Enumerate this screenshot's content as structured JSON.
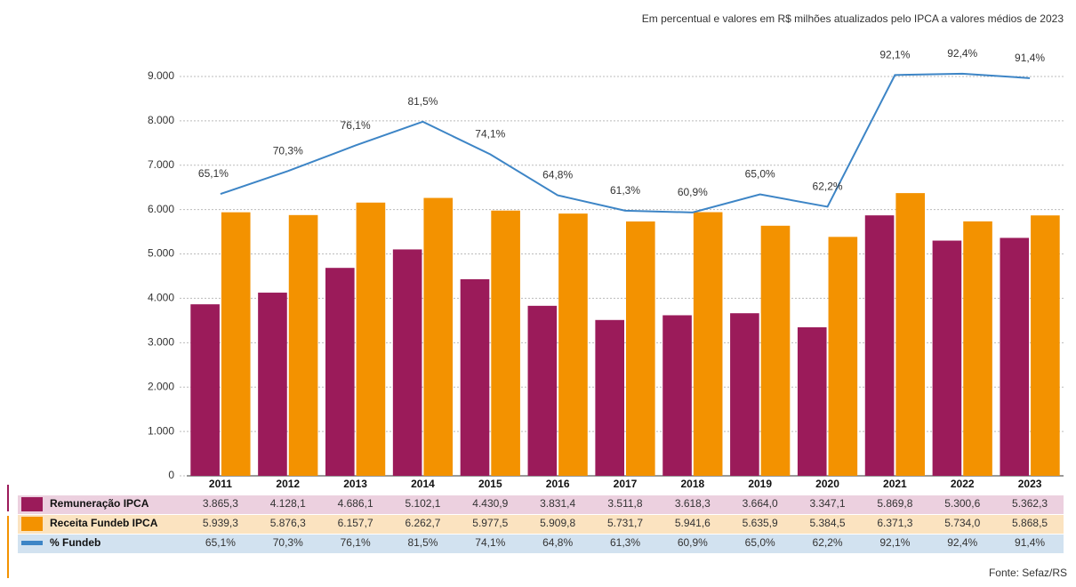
{
  "chart_data": {
    "type": "bar_line",
    "subtitle": "Em percentual e valores em R$ milhões atualizados pelo IPCA a valores médios de 2023",
    "source": "Fonte: Sefaz/RS",
    "categories": [
      "2011",
      "2012",
      "2013",
      "2014",
      "2015",
      "2016",
      "2017",
      "2018",
      "2019",
      "2020",
      "2021",
      "2022",
      "2023"
    ],
    "series": [
      {
        "name": "Remuneração IPCA",
        "color": "#9b1b5a",
        "row_color": "#ecd0df",
        "values": [
          3865.3,
          4128.1,
          4686.1,
          5102.1,
          4430.9,
          3831.4,
          3511.8,
          3618.3,
          3664.0,
          3347.1,
          5869.8,
          5300.6,
          5362.3
        ],
        "value_labels": [
          "3.865,3",
          "4.128,1",
          "4.686,1",
          "5.102,1",
          "4.430,9",
          "3.831,4",
          "3.511,8",
          "3.618,3",
          "3.664,0",
          "3.347,1",
          "5.869,8",
          "5.300,6",
          "5.362,3"
        ]
      },
      {
        "name": "Receita Fundeb IPCA",
        "color": "#f39200",
        "row_color": "#fbe3c0",
        "values": [
          5939.3,
          5876.3,
          6157.7,
          6262.7,
          5977.5,
          5909.8,
          5731.7,
          5941.6,
          5635.9,
          5384.5,
          6371.3,
          5734.0,
          5868.5
        ],
        "value_labels": [
          "5.939,3",
          "5.876,3",
          "6.157,7",
          "6.262,7",
          "5.977,5",
          "5.909,8",
          "5.731,7",
          "5.941,6",
          "5.635,9",
          "5.384,5",
          "6.371,3",
          "5.734,0",
          "5.868,5"
        ]
      },
      {
        "name": "% Fundeb",
        "color": "#3d85c6",
        "row_color": "#d2e2f0",
        "axis": "y2",
        "values": [
          65.1,
          70.3,
          76.1,
          81.5,
          74.1,
          64.8,
          61.3,
          60.9,
          65.0,
          62.2,
          92.1,
          92.4,
          91.4
        ],
        "value_labels": [
          "65,1%",
          "70,3%",
          "76,1%",
          "81,5%",
          "74,1%",
          "64,8%",
          "61,3%",
          "60,9%",
          "65,0%",
          "62,2%",
          "92,1%",
          "92,4%",
          "91,4%"
        ]
      }
    ],
    "ylim": [
      0,
      9300
    ],
    "y2lim": [
      1.1,
      94.8
    ],
    "yticks": [
      0,
      {
        "value": 1000,
        "label": "1.000"
      },
      {
        "value": 2000,
        "label": "2.000"
      },
      {
        "value": 3000,
        "label": "3.000"
      },
      {
        "value": 4000,
        "label": "4.000"
      },
      {
        "value": 5000,
        "label": "5.000"
      },
      {
        "value": 6000,
        "label": "6.000"
      },
      {
        "value": 7000,
        "label": "7.000"
      },
      {
        "value": 8000,
        "label": "8.000"
      },
      {
        "value": 9000,
        "label": "9.000"
      }
    ],
    "grid": true
  }
}
